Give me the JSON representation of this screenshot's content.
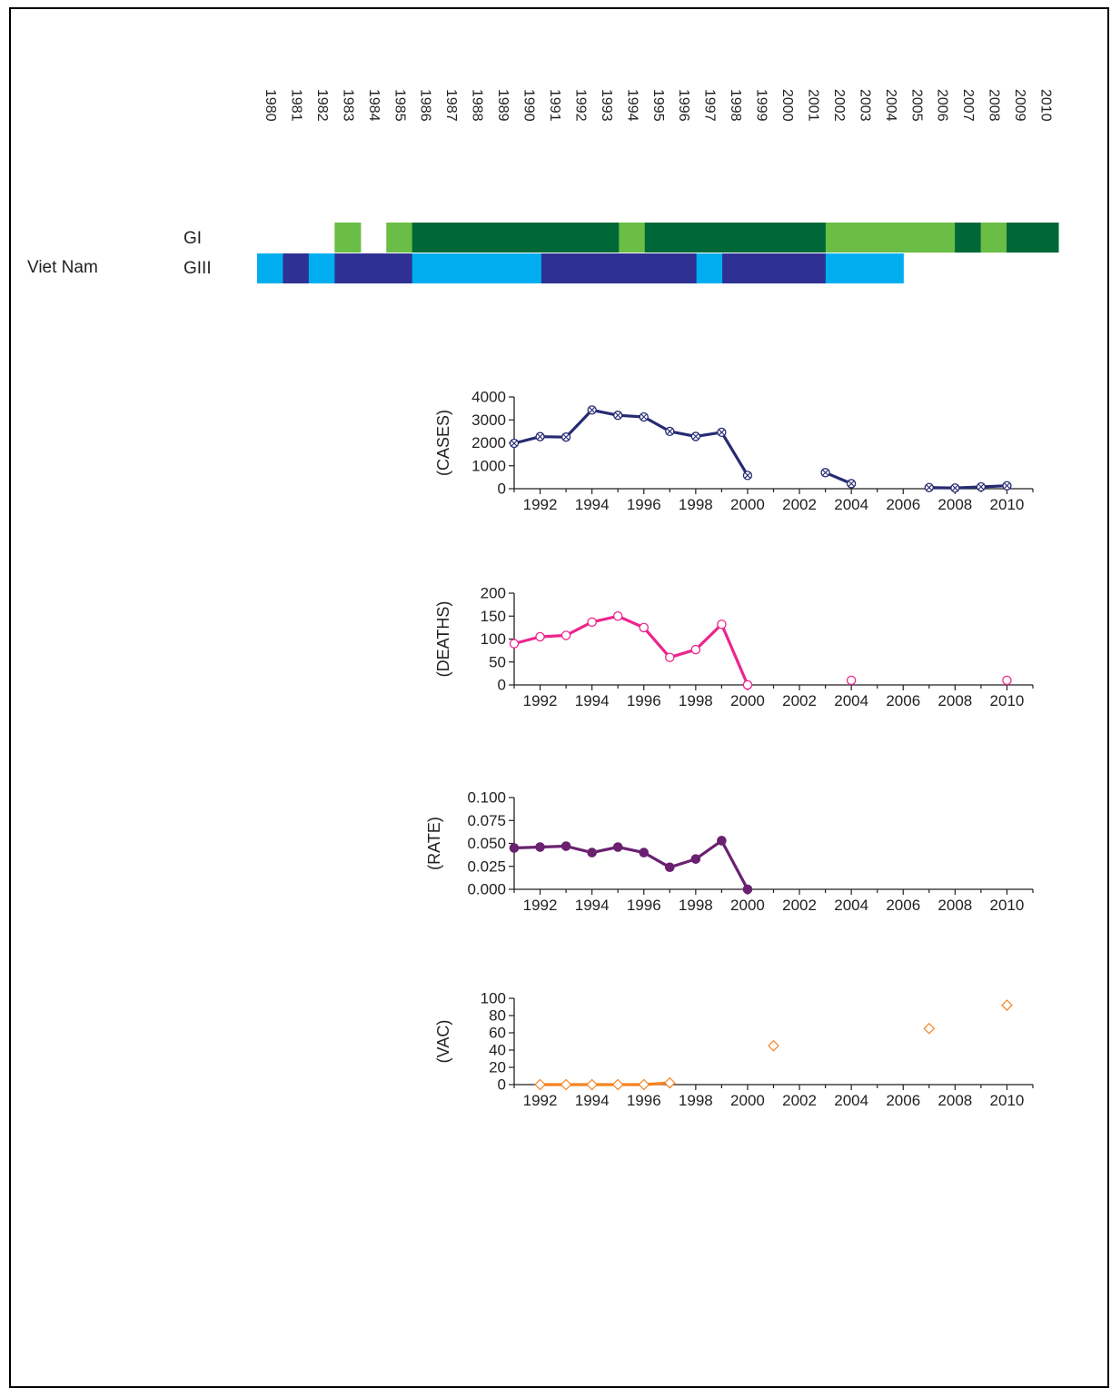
{
  "row_label": "Viet Nam",
  "genotype_labels": [
    "GI",
    "GIII"
  ],
  "colors": {
    "gi_dark": "#006838",
    "gi_light": "#6abd45",
    "giii_light": "#00aeef",
    "giii_dark": "#2e3192",
    "cases": "#262b72",
    "deaths": "#ec258e",
    "rate": "#6a2170",
    "vac": "#f58220"
  },
  "chart_data": [
    {
      "type": "heatmap",
      "years": [
        1980,
        1981,
        1982,
        1983,
        1984,
        1985,
        1986,
        1987,
        1988,
        1989,
        1990,
        1991,
        1992,
        1993,
        1994,
        1995,
        1996,
        1997,
        1998,
        1999,
        2000,
        2001,
        2002,
        2003,
        2004,
        2005,
        2006,
        2007,
        2008,
        2009,
        2010
      ],
      "rows": [
        {
          "name": "GI",
          "cells": [
            {
              "year": 1983,
              "level": "light"
            },
            {
              "year": 1985,
              "level": "light"
            },
            {
              "year": 1986,
              "level": "dark"
            },
            {
              "year": 1987,
              "level": "dark"
            },
            {
              "year": 1988,
              "level": "dark"
            },
            {
              "year": 1989,
              "level": "dark"
            },
            {
              "year": 1990,
              "level": "dark"
            },
            {
              "year": 1991,
              "level": "dark"
            },
            {
              "year": 1992,
              "level": "dark"
            },
            {
              "year": 1993,
              "level": "dark"
            },
            {
              "year": 1994,
              "level": "light"
            },
            {
              "year": 1995,
              "level": "dark"
            },
            {
              "year": 1996,
              "level": "dark"
            },
            {
              "year": 1997,
              "level": "dark"
            },
            {
              "year": 1998,
              "level": "dark"
            },
            {
              "year": 1999,
              "level": "dark"
            },
            {
              "year": 2000,
              "level": "dark"
            },
            {
              "year": 2001,
              "level": "dark"
            },
            {
              "year": 2002,
              "level": "light"
            },
            {
              "year": 2003,
              "level": "light"
            },
            {
              "year": 2004,
              "level": "light"
            },
            {
              "year": 2005,
              "level": "light"
            },
            {
              "year": 2006,
              "level": "light"
            },
            {
              "year": 2007,
              "level": "dark"
            },
            {
              "year": 2008,
              "level": "light"
            },
            {
              "year": 2009,
              "level": "dark"
            },
            {
              "year": 2010,
              "level": "dark"
            }
          ]
        },
        {
          "name": "GIII",
          "cells": [
            {
              "year": 1980,
              "level": "light"
            },
            {
              "year": 1981,
              "level": "dark"
            },
            {
              "year": 1982,
              "level": "light"
            },
            {
              "year": 1983,
              "level": "dark"
            },
            {
              "year": 1984,
              "level": "dark"
            },
            {
              "year": 1985,
              "level": "dark"
            },
            {
              "year": 1986,
              "level": "light"
            },
            {
              "year": 1987,
              "level": "light"
            },
            {
              "year": 1988,
              "level": "light"
            },
            {
              "year": 1989,
              "level": "light"
            },
            {
              "year": 1990,
              "level": "light"
            },
            {
              "year": 1991,
              "level": "dark"
            },
            {
              "year": 1992,
              "level": "dark"
            },
            {
              "year": 1993,
              "level": "dark"
            },
            {
              "year": 1994,
              "level": "dark"
            },
            {
              "year": 1995,
              "level": "dark"
            },
            {
              "year": 1996,
              "level": "dark"
            },
            {
              "year": 1997,
              "level": "light"
            },
            {
              "year": 1998,
              "level": "dark"
            },
            {
              "year": 1999,
              "level": "dark"
            },
            {
              "year": 2000,
              "level": "dark"
            },
            {
              "year": 2001,
              "level": "dark"
            },
            {
              "year": 2002,
              "level": "light"
            },
            {
              "year": 2003,
              "level": "light"
            },
            {
              "year": 2004,
              "level": "light"
            }
          ]
        }
      ]
    },
    {
      "type": "line",
      "ylabel": "(CASES)",
      "color_key": "cases",
      "marker": "crossed-circle",
      "xlim": [
        1991,
        2011
      ],
      "ylim": [
        0,
        4000
      ],
      "yticks": [
        0,
        1000,
        2000,
        3000,
        4000
      ],
      "ytick_labels": [
        "0",
        "1000",
        "2000",
        "3000",
        "4000"
      ],
      "xticks": [
        1992,
        1994,
        1996,
        1998,
        2000,
        2002,
        2004,
        2006,
        2008,
        2010
      ],
      "segments": [
        [
          [
            1991,
            1980
          ],
          [
            1992,
            2270
          ],
          [
            1993,
            2250
          ],
          [
            1994,
            3430
          ],
          [
            1995,
            3200
          ],
          [
            1996,
            3130
          ],
          [
            1997,
            2500
          ],
          [
            1998,
            2280
          ],
          [
            1999,
            2460
          ],
          [
            2000,
            580
          ]
        ],
        [
          [
            2003,
            700
          ],
          [
            2004,
            220
          ]
        ],
        [
          [
            2007,
            50
          ],
          [
            2008,
            30
          ],
          [
            2009,
            80
          ],
          [
            2010,
            130
          ]
        ]
      ]
    },
    {
      "type": "line",
      "ylabel": "(DEATHS)",
      "color_key": "deaths",
      "marker": "open-circle",
      "xlim": [
        1991,
        2011
      ],
      "ylim": [
        0,
        200
      ],
      "yticks": [
        0,
        50,
        100,
        150,
        200
      ],
      "ytick_labels": [
        "0",
        "50",
        "100",
        "150",
        "200"
      ],
      "xticks": [
        1992,
        1994,
        1996,
        1998,
        2000,
        2002,
        2004,
        2006,
        2008,
        2010
      ],
      "segments": [
        [
          [
            1991,
            90
          ],
          [
            1992,
            105
          ],
          [
            1993,
            108
          ],
          [
            1994,
            137
          ],
          [
            1995,
            150
          ],
          [
            1996,
            125
          ],
          [
            1997,
            60
          ],
          [
            1998,
            77
          ],
          [
            1999,
            132
          ],
          [
            2000,
            0
          ]
        ],
        [
          [
            2004,
            10
          ]
        ],
        [
          [
            2010,
            10
          ]
        ]
      ]
    },
    {
      "type": "line",
      "ylabel": "(RATE)",
      "color_key": "rate",
      "marker": "filled-circle",
      "xlim": [
        1991,
        2011
      ],
      "ylim": [
        0,
        0.1
      ],
      "yticks": [
        0,
        0.025,
        0.05,
        0.075,
        0.1
      ],
      "ytick_labels": [
        "0.000",
        "0.025",
        "0.050",
        "0.075",
        "0.100"
      ],
      "xticks": [
        1992,
        1994,
        1996,
        1998,
        2000,
        2002,
        2004,
        2006,
        2008,
        2010
      ],
      "segments": [
        [
          [
            1991,
            0.045
          ],
          [
            1992,
            0.046
          ],
          [
            1993,
            0.047
          ],
          [
            1994,
            0.04
          ],
          [
            1995,
            0.046
          ],
          [
            1996,
            0.04
          ],
          [
            1997,
            0.024
          ],
          [
            1998,
            0.033
          ],
          [
            1999,
            0.053
          ],
          [
            2000,
            0.0
          ]
        ]
      ]
    },
    {
      "type": "line",
      "ylabel": "(VAC)",
      "color_key": "vac",
      "marker": "open-diamond",
      "xlim": [
        1991,
        2011
      ],
      "ylim": [
        0,
        100
      ],
      "yticks": [
        0,
        20,
        40,
        60,
        80,
        100
      ],
      "ytick_labels": [
        "0",
        "20",
        "40",
        "60",
        "80",
        "100"
      ],
      "xticks": [
        1992,
        1994,
        1996,
        1998,
        2000,
        2002,
        2004,
        2006,
        2008,
        2010
      ],
      "segments": [
        [
          [
            1992,
            0
          ],
          [
            1993,
            0
          ],
          [
            1994,
            0
          ],
          [
            1995,
            0
          ],
          [
            1996,
            0
          ],
          [
            1997,
            2
          ]
        ],
        [
          [
            2001,
            45
          ]
        ],
        [
          [
            2007,
            65
          ]
        ],
        [
          [
            2010,
            92
          ]
        ]
      ]
    }
  ]
}
